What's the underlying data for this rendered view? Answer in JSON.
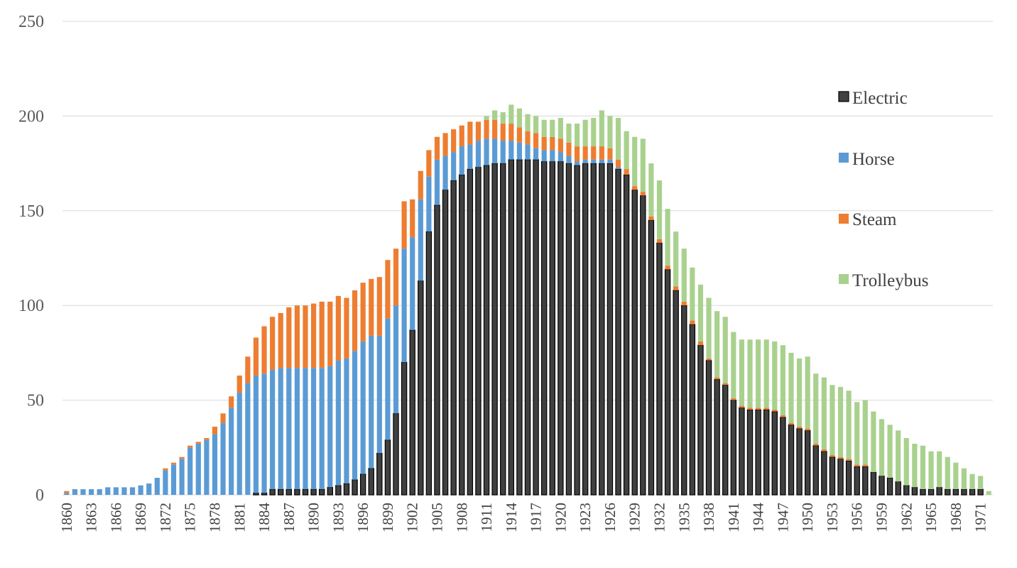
{
  "chart_data": {
    "type": "bar",
    "stacked": true,
    "x_start": 1860,
    "x_end": 1972,
    "x": [
      1860,
      1861,
      1862,
      1863,
      1864,
      1865,
      1866,
      1867,
      1868,
      1869,
      1870,
      1871,
      1872,
      1873,
      1874,
      1875,
      1876,
      1877,
      1878,
      1879,
      1880,
      1881,
      1882,
      1883,
      1884,
      1885,
      1886,
      1887,
      1888,
      1889,
      1890,
      1891,
      1892,
      1893,
      1894,
      1895,
      1896,
      1897,
      1898,
      1899,
      1900,
      1901,
      1902,
      1903,
      1904,
      1905,
      1906,
      1907,
      1908,
      1909,
      1910,
      1911,
      1912,
      1913,
      1914,
      1915,
      1916,
      1917,
      1918,
      1919,
      1920,
      1921,
      1922,
      1923,
      1924,
      1925,
      1926,
      1927,
      1928,
      1929,
      1930,
      1931,
      1932,
      1933,
      1934,
      1935,
      1936,
      1937,
      1938,
      1939,
      1940,
      1941,
      1942,
      1943,
      1944,
      1945,
      1946,
      1947,
      1948,
      1949,
      1950,
      1951,
      1952,
      1953,
      1954,
      1955,
      1956,
      1957,
      1958,
      1959,
      1960,
      1961,
      1962,
      1963,
      1964,
      1965,
      1966,
      1967,
      1968,
      1969,
      1970,
      1971,
      1972
    ],
    "tick_labels": [
      "1860",
      "1863",
      "1866",
      "1869",
      "1872",
      "1875",
      "1878",
      "1881",
      "1884",
      "1887",
      "1890",
      "1893",
      "1896",
      "1899",
      "1902",
      "1905",
      "1908",
      "1911",
      "1914",
      "1917",
      "1920",
      "1923",
      "1926",
      "1929",
      "1932",
      "1935",
      "1938",
      "1941",
      "1944",
      "1947",
      "1950",
      "1953",
      "1956",
      "1959",
      "1962",
      "1965",
      "1968",
      "1971"
    ],
    "ylim": [
      0,
      250
    ],
    "yticks": [
      "0",
      "50",
      "100",
      "150",
      "200",
      "250"
    ],
    "grid": true,
    "legend_position": "right",
    "series": [
      {
        "name": "Electric",
        "color": "#404040",
        "values": [
          0,
          0,
          0,
          0,
          0,
          0,
          0,
          0,
          0,
          0,
          0,
          0,
          0,
          0,
          0,
          0,
          0,
          0,
          0,
          0,
          0,
          0,
          0,
          1,
          1,
          3,
          3,
          3,
          3,
          3,
          3,
          3,
          4,
          5,
          6,
          8,
          11,
          14,
          22,
          29,
          43,
          70,
          87,
          113,
          139,
          153,
          161,
          166,
          169,
          172,
          173,
          174,
          175,
          175,
          177,
          177,
          177,
          177,
          176,
          176,
          176,
          175,
          174,
          175,
          175,
          175,
          175,
          172,
          169,
          161,
          158,
          145,
          133,
          119,
          108,
          100,
          90,
          79,
          71,
          61,
          58,
          50,
          46,
          45,
          45,
          45,
          44,
          41,
          37,
          35,
          34,
          26,
          23,
          20,
          19,
          18,
          15,
          15,
          12,
          10,
          9,
          7,
          5,
          4,
          3,
          3,
          4,
          3,
          3,
          3,
          3,
          3,
          0
        ]
      },
      {
        "name": "Horse",
        "color": "#5b9bd5",
        "values": [
          1,
          3,
          3,
          3,
          3,
          4,
          4,
          4,
          4,
          5,
          6,
          9,
          13,
          16,
          19,
          25,
          27,
          29,
          32,
          38,
          46,
          54,
          59,
          62,
          63,
          63,
          64,
          64,
          64,
          64,
          64,
          64,
          64,
          66,
          66,
          68,
          70,
          70,
          62,
          64,
          57,
          60,
          49,
          43,
          29,
          24,
          18,
          15,
          15,
          13,
          14,
          14,
          13,
          12,
          10,
          9,
          8,
          6,
          6,
          6,
          5,
          4,
          2,
          2,
          2,
          2,
          2,
          1,
          0,
          0,
          0,
          0,
          0,
          0,
          0,
          0,
          0,
          0,
          0,
          0,
          0,
          0,
          0,
          0,
          0,
          0,
          0,
          0,
          0,
          0,
          0,
          0,
          0,
          0,
          0,
          0,
          0,
          0,
          0,
          0,
          0,
          0,
          0,
          0,
          0,
          0,
          0,
          0,
          0,
          0,
          0,
          0,
          0
        ]
      },
      {
        "name": "Steam",
        "color": "#ed7d31",
        "values": [
          1,
          0,
          0,
          0,
          0,
          0,
          0,
          0,
          0,
          0,
          0,
          0,
          1,
          1,
          1,
          1,
          1,
          1,
          4,
          5,
          6,
          9,
          14,
          20,
          25,
          28,
          29,
          32,
          33,
          33,
          34,
          35,
          34,
          34,
          32,
          32,
          31,
          30,
          31,
          31,
          30,
          25,
          20,
          15,
          14,
          12,
          12,
          12,
          11,
          12,
          10,
          10,
          10,
          9,
          9,
          8,
          7,
          8,
          7,
          7,
          7,
          7,
          8,
          7,
          7,
          7,
          6,
          4,
          3,
          2,
          2,
          2,
          2,
          2,
          2,
          2,
          2,
          2,
          1,
          1,
          1,
          1,
          1,
          1,
          1,
          1,
          1,
          1,
          1,
          1,
          1,
          1,
          1,
          1,
          1,
          1,
          1,
          1,
          0,
          0,
          0,
          0,
          0,
          0,
          0,
          0,
          0,
          0,
          0,
          0,
          0,
          0,
          0
        ]
      },
      {
        "name": "Trolleybus",
        "color": "#a9d18e",
        "values": [
          0,
          0,
          0,
          0,
          0,
          0,
          0,
          0,
          0,
          0,
          0,
          0,
          0,
          0,
          0,
          0,
          0,
          0,
          0,
          0,
          0,
          0,
          0,
          0,
          0,
          0,
          0,
          0,
          0,
          0,
          0,
          0,
          0,
          0,
          0,
          0,
          0,
          0,
          0,
          0,
          0,
          0,
          0,
          0,
          0,
          0,
          0,
          0,
          0,
          0,
          0,
          2,
          5,
          6,
          10,
          10,
          9,
          9,
          9,
          9,
          11,
          10,
          12,
          14,
          15,
          19,
          17,
          22,
          20,
          26,
          28,
          28,
          31,
          30,
          29,
          28,
          28,
          30,
          32,
          35,
          35,
          35,
          35,
          36,
          36,
          36,
          36,
          37,
          37,
          36,
          38,
          37,
          38,
          37,
          37,
          36,
          33,
          34,
          32,
          30,
          28,
          27,
          25,
          23,
          23,
          20,
          19,
          17,
          14,
          11,
          8,
          7,
          2
        ]
      }
    ],
    "legend": {
      "items": [
        "Electric",
        "Horse",
        "Steam",
        "Trolleybus"
      ]
    }
  }
}
